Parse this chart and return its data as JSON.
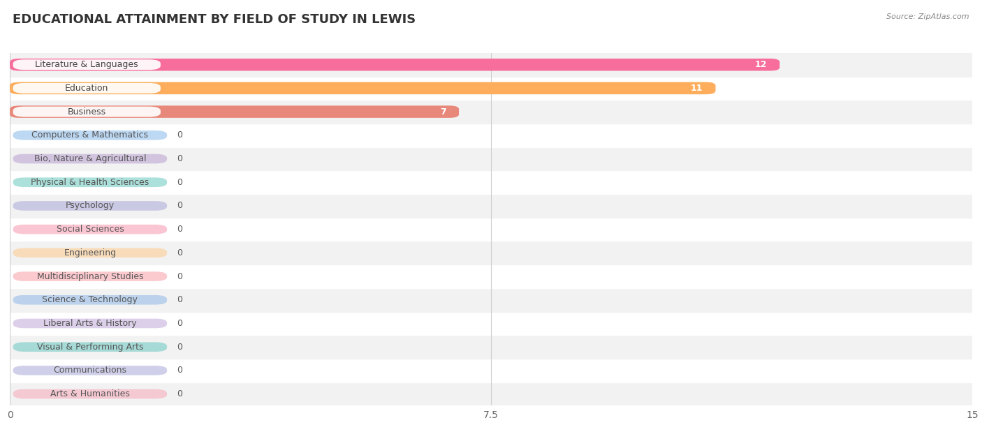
{
  "title": "EDUCATIONAL ATTAINMENT BY FIELD OF STUDY IN LEWIS",
  "source": "Source: ZipAtlas.com",
  "categories": [
    "Literature & Languages",
    "Education",
    "Business",
    "Computers & Mathematics",
    "Bio, Nature & Agricultural",
    "Physical & Health Sciences",
    "Psychology",
    "Social Sciences",
    "Engineering",
    "Multidisciplinary Studies",
    "Science & Technology",
    "Liberal Arts & History",
    "Visual & Performing Arts",
    "Communications",
    "Arts & Humanities"
  ],
  "values": [
    12,
    11,
    7,
    0,
    0,
    0,
    0,
    0,
    0,
    0,
    0,
    0,
    0,
    0,
    0
  ],
  "bar_colors": [
    "#F76D9B",
    "#FDAD5C",
    "#E8887A",
    "#88B8E8",
    "#B89FD0",
    "#68C8BC",
    "#A8A8D8",
    "#F898B0",
    "#FDCB8C",
    "#F8A0A8",
    "#90B8E8",
    "#C0A8D8",
    "#68C8C0",
    "#A8A8D8",
    "#F8A8B8"
  ],
  "zero_pill_widths": [
    2.5,
    2.2,
    2.6,
    2.1,
    2.5,
    2.4,
    2.5,
    2.3,
    2.4,
    2.5,
    2.2,
    2.5,
    2.2,
    2.4
  ],
  "xlim": [
    0,
    15
  ],
  "xticks": [
    0,
    7.5,
    15
  ],
  "background_color": "#FFFFFF",
  "row_bg_even": "#F2F2F2",
  "row_bg_odd": "#FFFFFF",
  "title_fontsize": 13,
  "label_fontsize": 9,
  "value_fontsize": 9
}
